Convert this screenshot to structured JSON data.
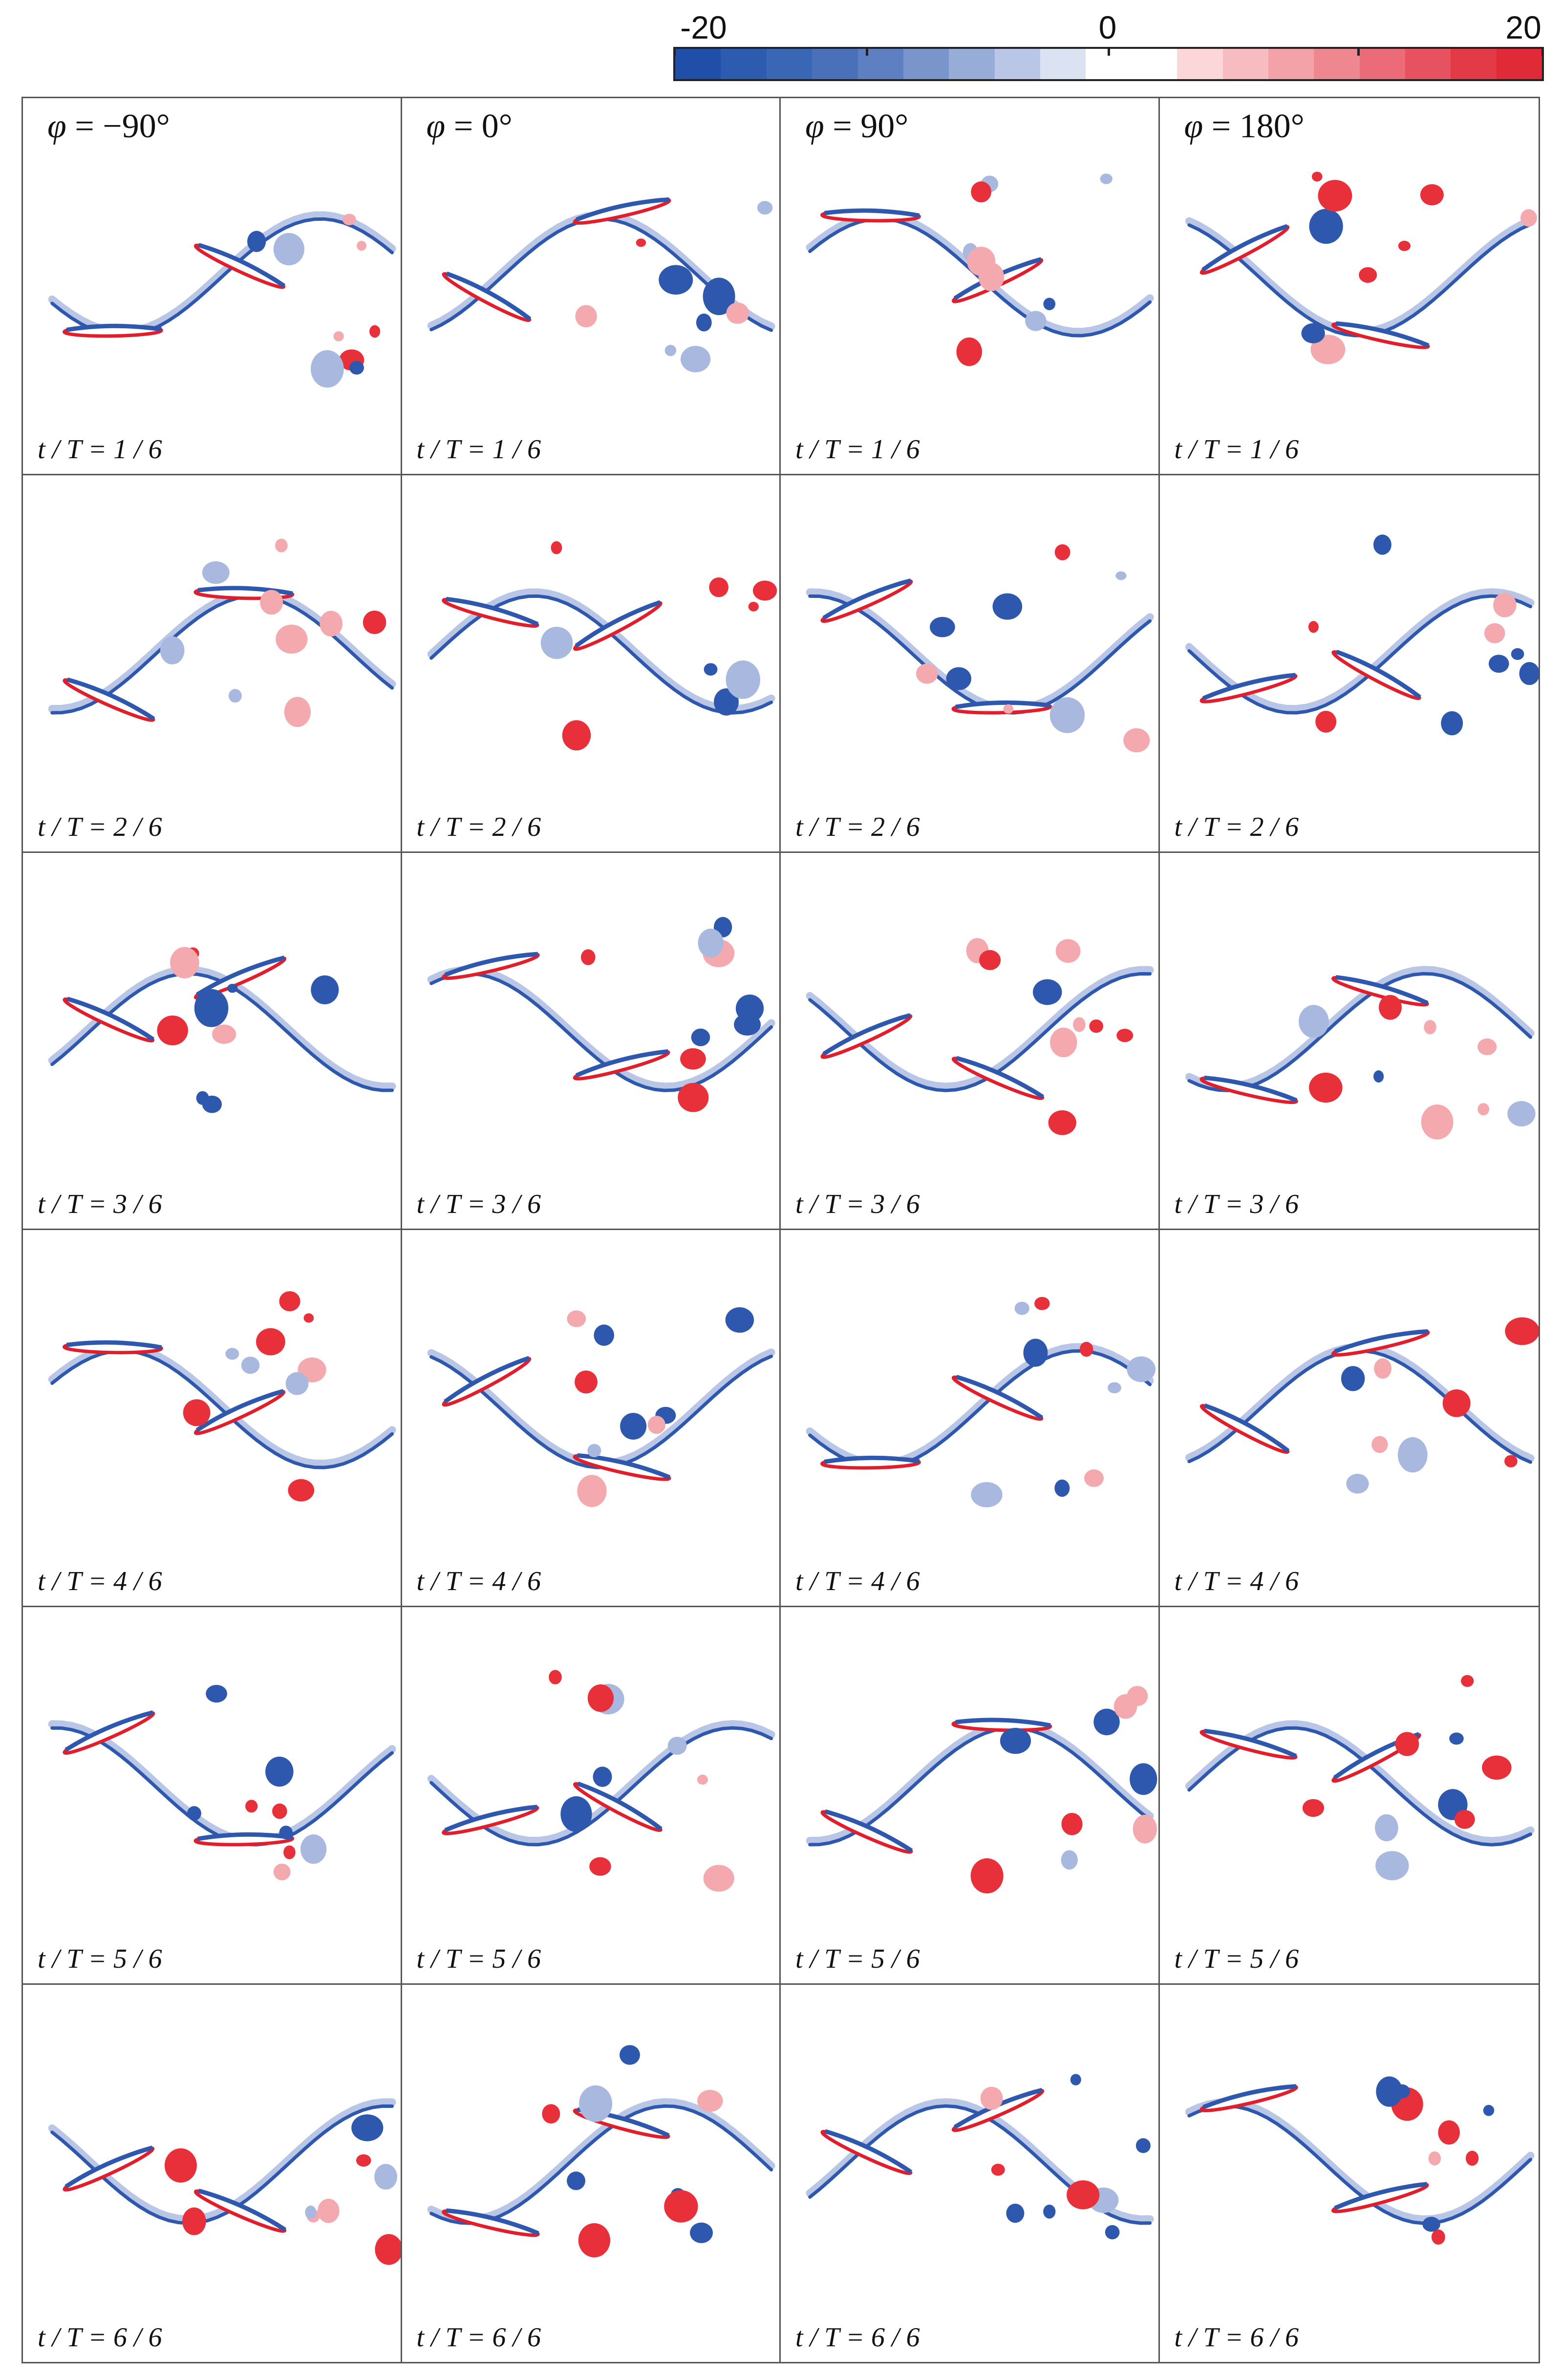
{
  "colorbar": {
    "min_label": "-20",
    "mid_label": "0",
    "max_label": "20",
    "colors": [
      "#1f4fa8",
      "#2d5bb0",
      "#3a66b6",
      "#4a70ba",
      "#5e7fc2",
      "#7a94cc",
      "#98acd8",
      "#b9c6e5",
      "#dbe2f2",
      "#ffffff",
      "#ffffff",
      "#fbd7da",
      "#f7bcc1",
      "#f3a2a9",
      "#ef8791",
      "#eb6c78",
      "#e75260",
      "#e33a48",
      "#e12a38"
    ]
  },
  "columns": [
    {
      "symbol": "φ",
      "eq": " = ",
      "value": "−90°"
    },
    {
      "symbol": "φ",
      "eq": " = ",
      "value": "0°"
    },
    {
      "symbol": "φ",
      "eq": " = ",
      "value": "90°"
    },
    {
      "symbol": "φ",
      "eq": " = ",
      "value": "180°"
    }
  ],
  "rows": [
    {
      "label": "t / T = 1 / 6"
    },
    {
      "label": "t / T = 2 / 6"
    },
    {
      "label": "t / T = 3 / 6"
    },
    {
      "label": "t / T = 4 / 6"
    },
    {
      "label": "t / T = 5 / 6"
    },
    {
      "label": "t / T = 6 / 6"
    }
  ],
  "palette": {
    "positive": "#e8303b",
    "negative": "#2e58ad",
    "positive_light": "#f4a9ae",
    "negative_light": "#a9b8de",
    "airfoil": "#e11f2c"
  }
}
